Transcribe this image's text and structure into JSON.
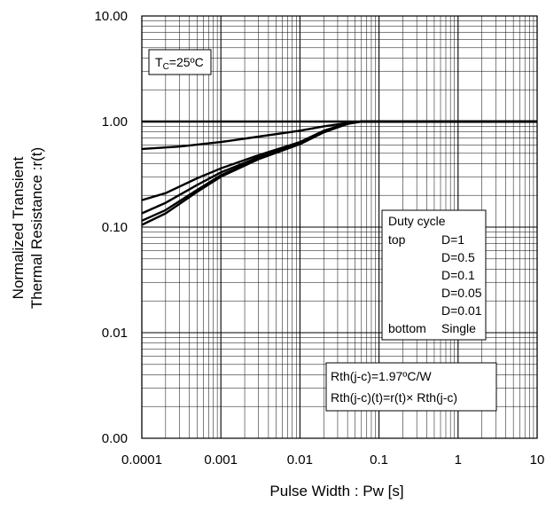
{
  "chart_data": {
    "type": "line",
    "title": "",
    "xlabel": "Pulse Width : Pw [s]",
    "ylabel": [
      "Normalized Transient",
      "Thermal Resistance :r(t)"
    ],
    "x_scale": "log",
    "y_scale": "log",
    "xlim": [
      0.0001,
      10
    ],
    "ylim": [
      0.001,
      10
    ],
    "x_ticks": [
      {
        "value": 0.0001,
        "label": "0.0001"
      },
      {
        "value": 0.001,
        "label": "0.001"
      },
      {
        "value": 0.01,
        "label": "0.01"
      },
      {
        "value": 0.1,
        "label": "0.1"
      },
      {
        "value": 1,
        "label": "1"
      },
      {
        "value": 10,
        "label": "10"
      }
    ],
    "y_ticks": [
      {
        "value": 0.001,
        "label": "0.00"
      },
      {
        "value": 0.01,
        "label": "0.01"
      },
      {
        "value": 0.1,
        "label": "0.10"
      },
      {
        "value": 1,
        "label": "1.00"
      },
      {
        "value": 10,
        "label": "10.00"
      }
    ],
    "grid": true,
    "condition": {
      "main": "T",
      "sub": "C",
      "rest": "=25ºC"
    },
    "legend": {
      "title": "Duty cycle",
      "rows": [
        {
          "pos": "top",
          "label": "D=1"
        },
        {
          "pos": "",
          "label": "D=0.5"
        },
        {
          "pos": "",
          "label": "D=0.1"
        },
        {
          "pos": "",
          "label": "D=0.05"
        },
        {
          "pos": "",
          "label": "D=0.01"
        },
        {
          "pos": "bottom",
          "label": "Single"
        }
      ]
    },
    "note_lines": [
      "Rth(j-c)=1.97ºC/W",
      "Rth(j-c)(t)=r(t)× Rth(j-c)"
    ],
    "series": [
      {
        "name": "D=1",
        "x": [
          0.0001,
          0.001,
          0.01,
          0.1,
          1,
          10
        ],
        "y": [
          1,
          1,
          1,
          1,
          1,
          1
        ]
      },
      {
        "name": "D=0.5",
        "x": [
          0.0001,
          0.0003,
          0.001,
          0.003,
          0.01,
          0.02,
          0.04,
          0.06,
          10
        ],
        "y": [
          0.55,
          0.58,
          0.64,
          0.72,
          0.82,
          0.9,
          0.97,
          1,
          1
        ]
      },
      {
        "name": "D=0.1",
        "x": [
          0.0001,
          0.0002,
          0.0005,
          0.001,
          0.003,
          0.01,
          0.02,
          0.04,
          0.06,
          10
        ],
        "y": [
          0.18,
          0.21,
          0.29,
          0.36,
          0.48,
          0.64,
          0.82,
          0.96,
          1,
          1
        ]
      },
      {
        "name": "D=0.05",
        "x": [
          0.0001,
          0.0002,
          0.0005,
          0.001,
          0.003,
          0.01,
          0.02,
          0.04,
          0.06,
          10
        ],
        "y": [
          0.135,
          0.17,
          0.25,
          0.33,
          0.46,
          0.63,
          0.81,
          0.96,
          1,
          1
        ]
      },
      {
        "name": "D=0.01",
        "x": [
          0.0001,
          0.0002,
          0.0005,
          0.001,
          0.003,
          0.01,
          0.02,
          0.04,
          0.06,
          10
        ],
        "y": [
          0.115,
          0.145,
          0.225,
          0.31,
          0.45,
          0.62,
          0.8,
          0.96,
          1,
          1
        ]
      },
      {
        "name": "Single",
        "x": [
          0.0001,
          0.0002,
          0.0005,
          0.001,
          0.003,
          0.01,
          0.02,
          0.04,
          0.06,
          10
        ],
        "y": [
          0.105,
          0.135,
          0.215,
          0.3,
          0.44,
          0.61,
          0.79,
          0.95,
          1,
          1
        ]
      }
    ]
  }
}
